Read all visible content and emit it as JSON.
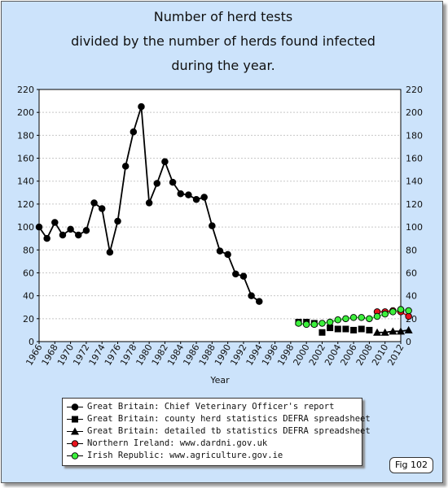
{
  "title_lines": [
    "Number of herd tests",
    "divided by the number of herds found infected",
    "during the year."
  ],
  "fig_label": "Fig 102",
  "legend": [
    {
      "marker": "circle",
      "color": "#000000",
      "label": "Great Britain: Chief Veterinary Officer's report"
    },
    {
      "marker": "square",
      "color": "#000000",
      "label": "Great Britain: county herd statistics DEFRA spreadsheet"
    },
    {
      "marker": "triangle",
      "color": "#000000",
      "label": "Great Britain: detailed tb statistics DEFRA spreadsheet"
    },
    {
      "marker": "circle",
      "color": "#e8141e",
      "label": "Northern Ireland: www.dardni.gov.uk"
    },
    {
      "marker": "circle",
      "color": "#3cf03c",
      "label": "Irish Republic: www.agriculture.gov.ie"
    }
  ],
  "chart_data": {
    "type": "line",
    "xlabel": "Year",
    "ylabel": "",
    "xlim": [
      1966,
      2012
    ],
    "ylim": [
      0,
      220
    ],
    "x_ticks": [
      1966,
      1968,
      1970,
      1972,
      1974,
      1976,
      1978,
      1980,
      1982,
      1984,
      1986,
      1988,
      1990,
      1992,
      1994,
      1996,
      1998,
      2000,
      2002,
      2004,
      2006,
      2008,
      2010,
      2012
    ],
    "y_ticks": [
      0,
      20,
      40,
      60,
      80,
      100,
      120,
      140,
      160,
      180,
      200,
      220
    ],
    "grid": true,
    "series": [
      {
        "name": "Great Britain: Chief Veterinary Officer's report",
        "marker": "circle",
        "color": "#000000",
        "line": "#000000",
        "x": [
          1966,
          1967,
          1968,
          1969,
          1970,
          1971,
          1972,
          1973,
          1974,
          1975,
          1976,
          1977,
          1978,
          1979,
          1980,
          1981,
          1982,
          1983,
          1984,
          1985,
          1986,
          1987,
          1988,
          1989,
          1990,
          1991,
          1992,
          1993,
          1994,
          1995
        ],
        "y": [
          100,
          90,
          104,
          93,
          98,
          93,
          97,
          121,
          116,
          78,
          105,
          153,
          183,
          205,
          121,
          138,
          157,
          139,
          129,
          128,
          124,
          126,
          101,
          79,
          76,
          59,
          57,
          40,
          35,
          null
        ]
      },
      {
        "name": "Great Britain: county herd statistics DEFRA spreadsheet",
        "marker": "square",
        "color": "#000000",
        "line": null,
        "x": [
          1999,
          2000,
          2001,
          2002,
          2003,
          2004,
          2005,
          2006,
          2007,
          2008
        ],
        "y": [
          17,
          17,
          16,
          8,
          12,
          11,
          11,
          10,
          11,
          10
        ]
      },
      {
        "name": "Great Britain: detailed tb statistics DEFRA spreadsheet",
        "marker": "triangle",
        "color": "#000000",
        "line": "#000000",
        "x": [
          2009,
          2010,
          2011,
          2012,
          2013
        ],
        "y": [
          8,
          8,
          9,
          9,
          10
        ]
      },
      {
        "name": "Northern Ireland: www.dardni.gov.uk",
        "marker": "circle",
        "color": "#e8141e",
        "line": "#e8141e",
        "x": [
          2009,
          2010,
          2011,
          2012,
          2013
        ],
        "y": [
          26,
          26,
          27,
          26,
          22
        ]
      },
      {
        "name": "Irish Republic: www.agriculture.gov.ie",
        "marker": "circle",
        "color": "#3cf03c",
        "line": "#3cf03c",
        "x": [
          1999,
          2000,
          2001,
          2002,
          2003,
          2004,
          2005,
          2006,
          2007,
          2008,
          2009,
          2010,
          2011,
          2012,
          2013
        ],
        "y": [
          16,
          15,
          15,
          16,
          17,
          19,
          20,
          21,
          21,
          20,
          22,
          24,
          26,
          28,
          27
        ]
      }
    ]
  }
}
